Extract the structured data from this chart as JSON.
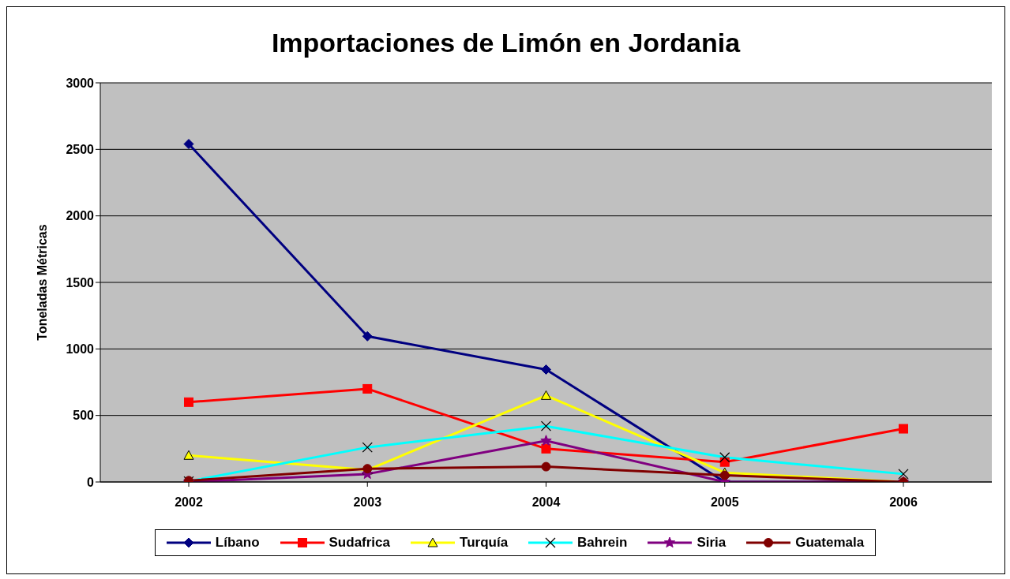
{
  "chart_data": {
    "type": "line",
    "title": "Importaciones de Limón en Jordania",
    "ylabel": "Toneladas Métricas",
    "categories": [
      "2002",
      "2003",
      "2004",
      "2005",
      "2006"
    ],
    "series": [
      {
        "name": "Líbano",
        "color": "#000080",
        "marker": "diamond",
        "values": [
          2540,
          1095,
          845,
          0,
          0
        ]
      },
      {
        "name": "Sudafrica",
        "color": "#ff0000",
        "marker": "square",
        "values": [
          600,
          700,
          250,
          150,
          400
        ]
      },
      {
        "name": "Turquía",
        "color": "#ffff00",
        "marker": "triangle",
        "values": [
          200,
          90,
          650,
          70,
          0
        ]
      },
      {
        "name": "Bahrein",
        "color": "#00ffff",
        "marker": "cross",
        "values": [
          5,
          260,
          420,
          185,
          60
        ]
      },
      {
        "name": "Siria",
        "color": "#800080",
        "marker": "star",
        "values": [
          0,
          60,
          310,
          0,
          0
        ]
      },
      {
        "name": "Guatemala",
        "color": "#800000",
        "marker": "circle",
        "values": [
          10,
          100,
          115,
          50,
          0
        ]
      }
    ],
    "ylim": [
      0,
      3000
    ],
    "yticks": [
      0,
      500,
      1000,
      1500,
      2000,
      2500,
      3000
    ],
    "grid": "y",
    "legend": "bottom",
    "line_style": "solid"
  }
}
